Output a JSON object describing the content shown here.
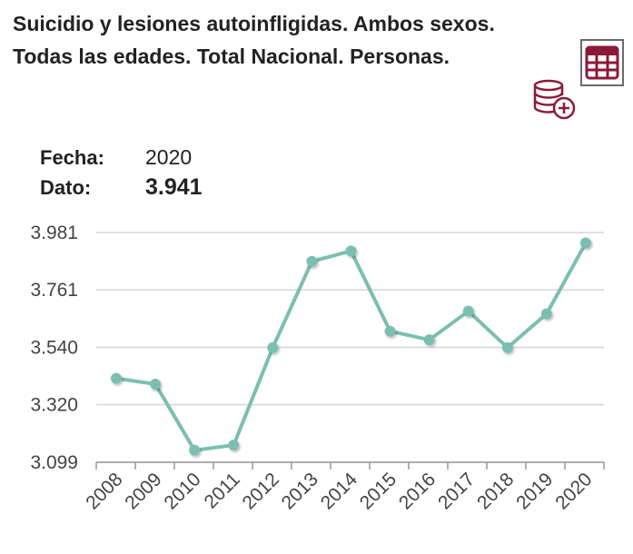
{
  "title": {
    "line1": "Suicidio y lesiones autoinfligidas. Ambos sexos.",
    "line2": "Todas las edades. Total Nacional. Personas."
  },
  "icons": {
    "table": "table-icon",
    "database": "database-add-icon"
  },
  "colors": {
    "accent": "#8b1a3a",
    "series": "#7cbfb2",
    "grid": "#d6d6d6"
  },
  "tooltip": {
    "date_label": "Fecha:",
    "date_value": "2020",
    "data_label": "Dato:",
    "data_value": "3.941"
  },
  "chart_data": {
    "type": "line",
    "categories": [
      "2008",
      "2009",
      "2010",
      "2011",
      "2012",
      "2013",
      "2014",
      "2015",
      "2016",
      "2017",
      "2018",
      "2019",
      "2020"
    ],
    "values": [
      3421,
      3399,
      3145,
      3165,
      3539,
      3870,
      3910,
      3602,
      3569,
      3679,
      3539,
      3669,
      3941
    ],
    "ylim": [
      3099,
      3981
    ],
    "yticks": [
      3099,
      3320,
      3540,
      3761,
      3981
    ],
    "ytick_labels": [
      "3.099",
      "3.320",
      "3.540",
      "3.761",
      "3.981"
    ],
    "grid": true,
    "legend": "none"
  }
}
